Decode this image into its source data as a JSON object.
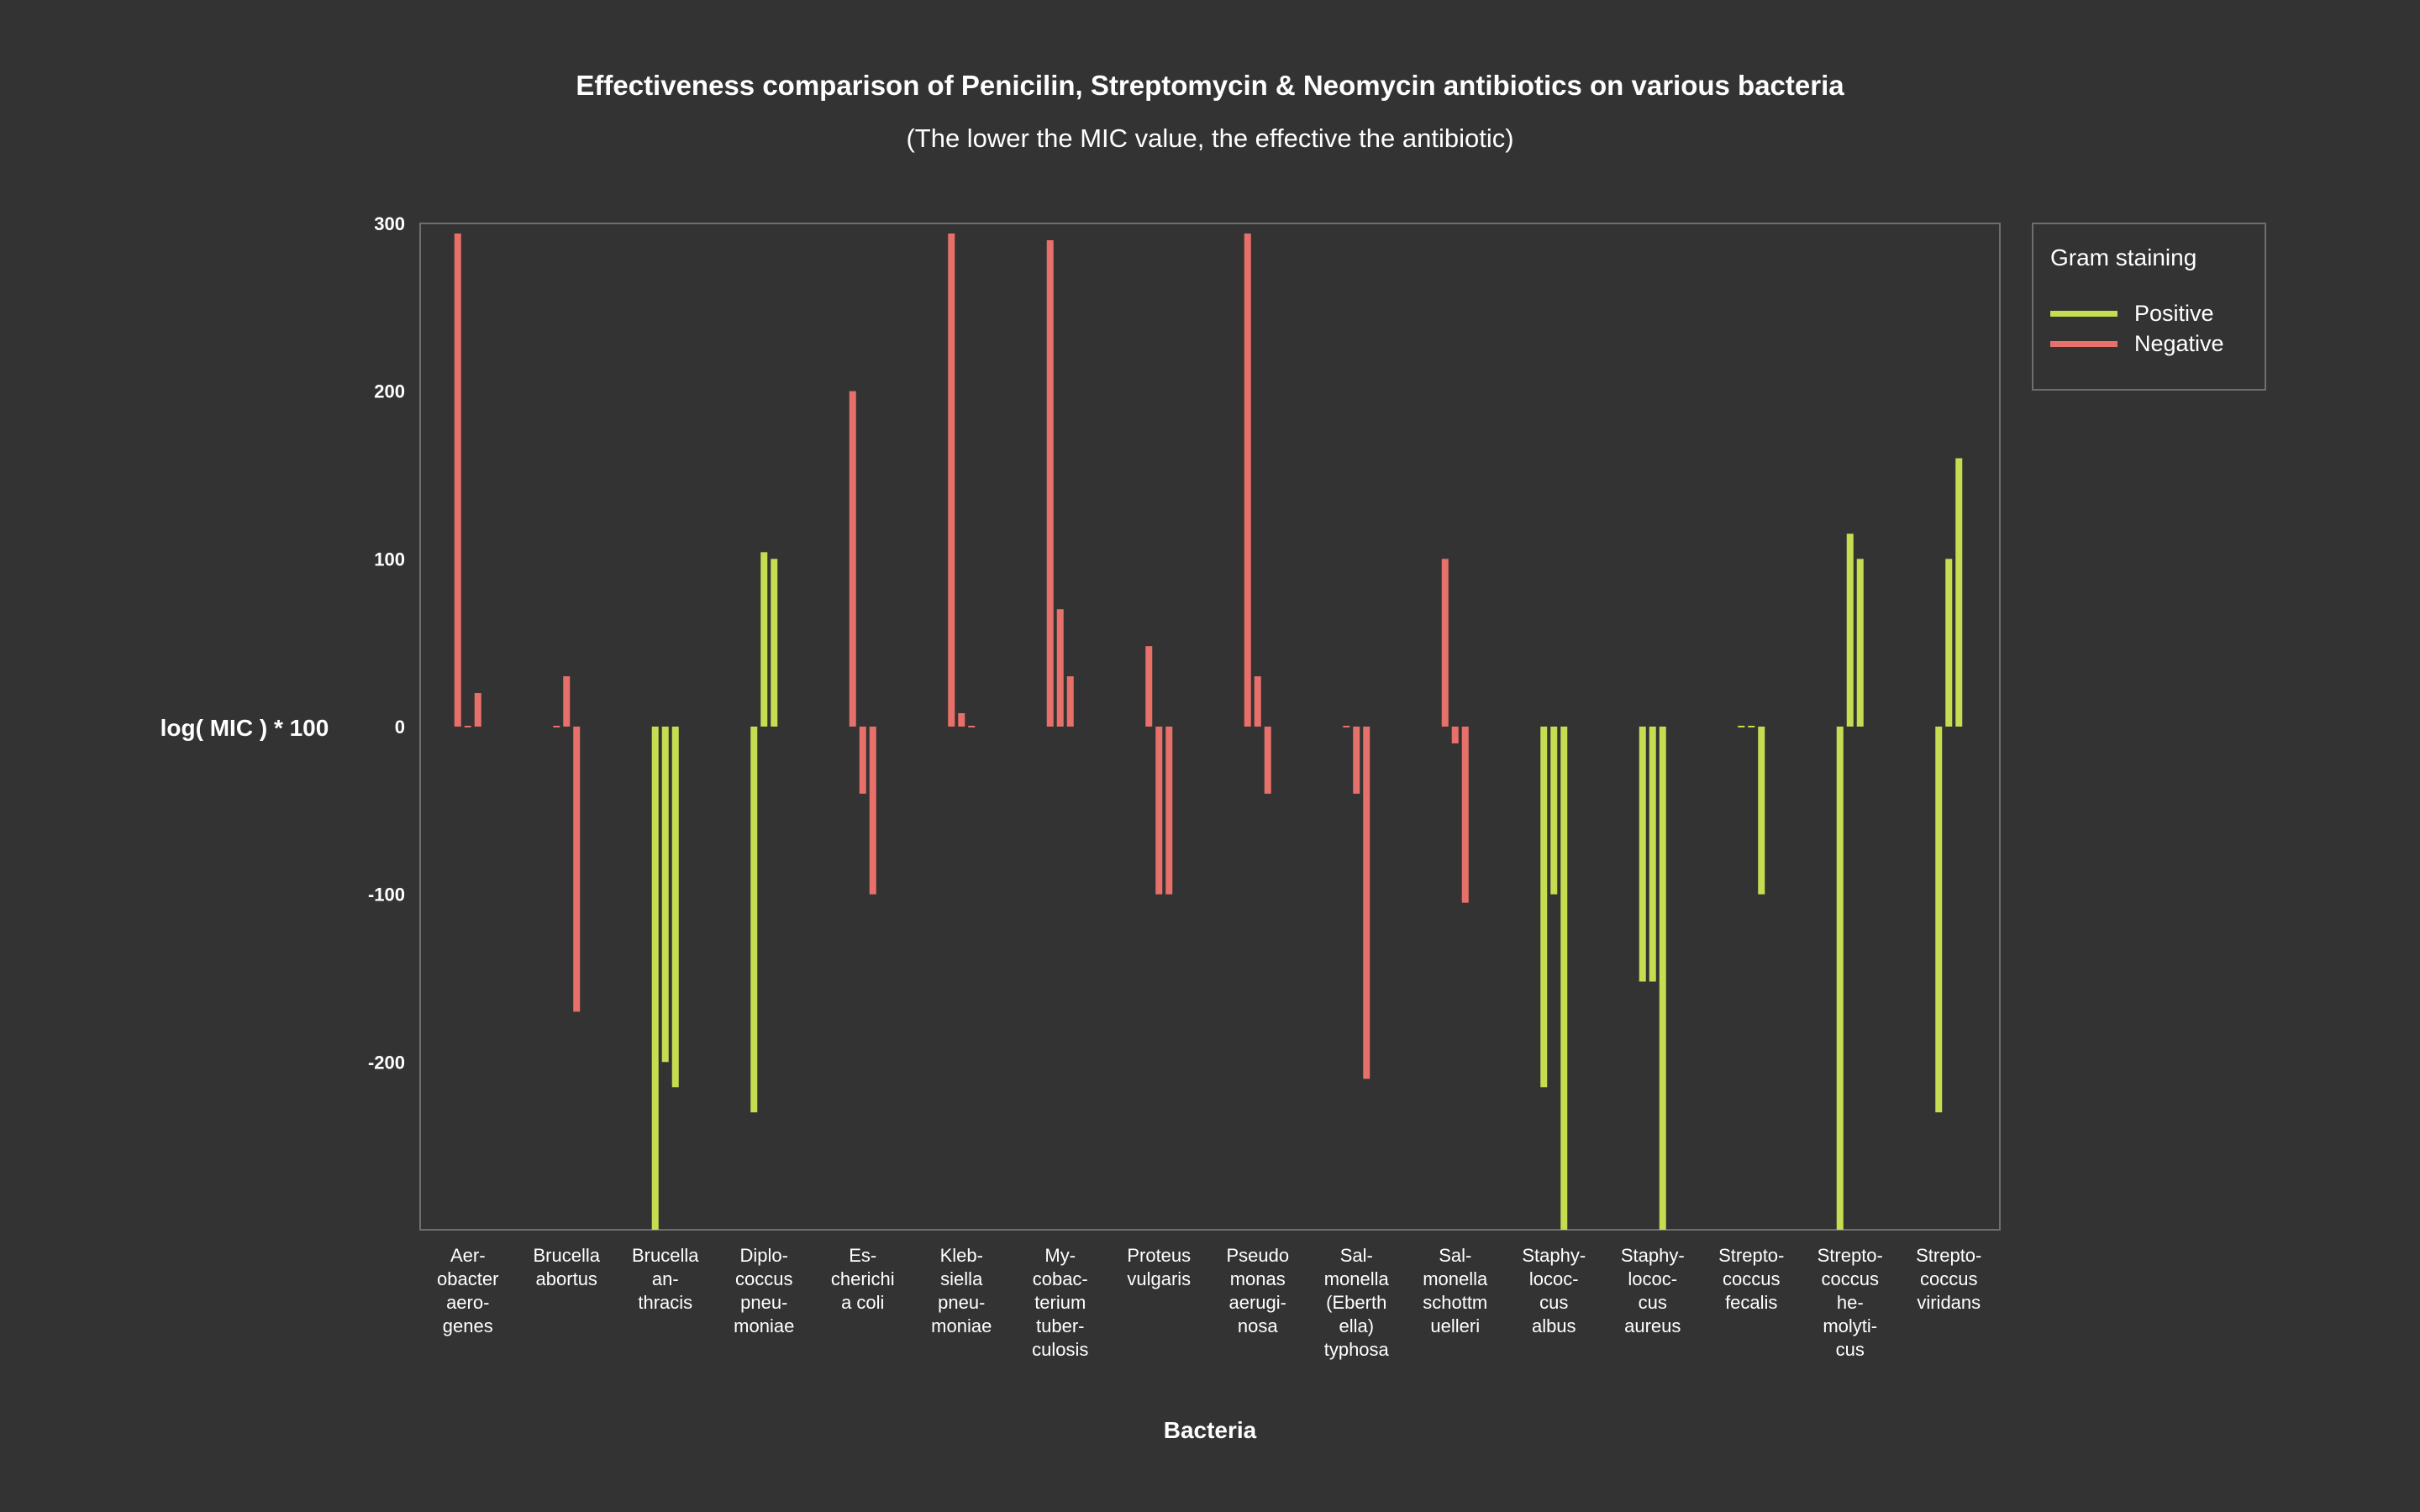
{
  "chart_data": {
    "type": "bar",
    "title": "Effectiveness comparison of Penicilin, Streptomycin & Neomycin antibiotics on various bacteria",
    "subtitle": "(The lower the MIC value, the effective the antibiotic)",
    "xlabel": "Bacteria",
    "ylabel": "log( MIC ) * 100",
    "ylim": [
      -300,
      300
    ],
    "yticks": [
      300,
      200,
      100,
      0,
      -100,
      -200
    ],
    "series_names": [
      "Penicilin",
      "Streptomycin",
      "Neomycin"
    ],
    "legend": {
      "title": "Gram staining",
      "position": "top-right",
      "items": [
        {
          "label": "Positive",
          "color": "#c6dd52"
        },
        {
          "label": "Negative",
          "color": "#e8706a"
        }
      ]
    },
    "colors": {
      "positive": "#c6dd52",
      "negative": "#e8706a",
      "background": "#333333",
      "frame": "#6e6e6e"
    },
    "bacteria": [
      {
        "label_lines": [
          "Aer-",
          "obacter",
          "aero-",
          "genes"
        ],
        "gram": "negative",
        "values": [
          294,
          0,
          20
        ]
      },
      {
        "label_lines": [
          "Brucella",
          "abortus"
        ],
        "gram": "negative",
        "values": [
          0,
          30,
          -170
        ]
      },
      {
        "label_lines": [
          "Brucella",
          "an-",
          "thracis"
        ],
        "gram": "positive",
        "values": [
          -300,
          -200,
          -215
        ]
      },
      {
        "label_lines": [
          "Diplo-",
          "coccus",
          "pneu-",
          "moniae"
        ],
        "gram": "positive",
        "values": [
          -230,
          104,
          100
        ]
      },
      {
        "label_lines": [
          "Es-",
          "cherichi",
          "a coli"
        ],
        "gram": "negative",
        "values": [
          200,
          -40,
          -100
        ]
      },
      {
        "label_lines": [
          "Kleb-",
          "siella",
          "pneu-",
          "moniae"
        ],
        "gram": "negative",
        "values": [
          294,
          8,
          0
        ]
      },
      {
        "label_lines": [
          "My-",
          "cobac-",
          "terium",
          "tuber-",
          "culosis"
        ],
        "gram": "negative",
        "values": [
          290,
          70,
          30
        ]
      },
      {
        "label_lines": [
          "Proteus",
          "vulgaris"
        ],
        "gram": "negative",
        "values": [
          48,
          -100,
          -100
        ]
      },
      {
        "label_lines": [
          "Pseudo",
          "monas",
          "aerugi-",
          "nosa"
        ],
        "gram": "negative",
        "values": [
          294,
          30,
          -40
        ]
      },
      {
        "label_lines": [
          "Sal-",
          "monella",
          "(Eberth",
          "ella)",
          "typhosa"
        ],
        "gram": "negative",
        "values": [
          0,
          -40,
          -210
        ]
      },
      {
        "label_lines": [
          "Sal-",
          "monella",
          "schottm",
          "uelleri"
        ],
        "gram": "negative",
        "values": [
          100,
          -10,
          -105
        ]
      },
      {
        "label_lines": [
          "Staphy-",
          "lococ-",
          "cus",
          "albus"
        ],
        "gram": "positive",
        "values": [
          -215,
          -100,
          -300
        ]
      },
      {
        "label_lines": [
          "Staphy-",
          "lococ-",
          "cus",
          "aureus"
        ],
        "gram": "positive",
        "values": [
          -152,
          -152,
          -300
        ]
      },
      {
        "label_lines": [
          "Strepto-",
          "coccus",
          "fecalis"
        ],
        "gram": "positive",
        "values": [
          0,
          0,
          -100
        ]
      },
      {
        "label_lines": [
          "Strepto-",
          "coccus",
          "he-",
          "molyti-",
          "cus"
        ],
        "gram": "positive",
        "values": [
          -300,
          115,
          100
        ]
      },
      {
        "label_lines": [
          "Strepto-",
          "coccus",
          "viridans"
        ],
        "gram": "positive",
        "values": [
          -230,
          100,
          160
        ]
      }
    ]
  }
}
